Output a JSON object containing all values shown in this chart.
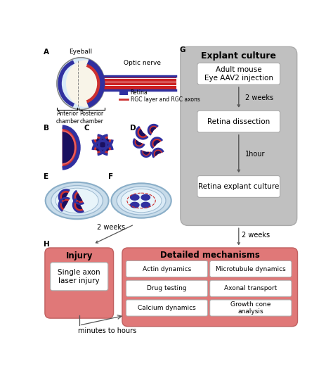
{
  "bg_color": "#ffffff",
  "gray_box_color": "#c0c0c0",
  "red_box_color": "#e07878",
  "white_box_color": "#ffffff",
  "retina_blue": "#3030a0",
  "retina_red": "#cc3030",
  "retina_dark": "#1a1060",
  "nerve_red": "#cc2020",
  "explant_title": "Explant culture",
  "flow_boxes": [
    "Adult mouse\nEye AAV2 injection",
    "Retina dissection",
    "Retina explant culture"
  ],
  "flow_labels": [
    "2 weeks",
    "1hour"
  ],
  "injury_title": "Injury",
  "injury_box": "Single axon\nlaser injury",
  "mechanisms_title": "Detailed mechanisms",
  "mechanisms_boxes": [
    [
      "Actin dynamics",
      "Microtubule dynamics"
    ],
    [
      "Drug testing",
      "Axonal transport"
    ],
    [
      "Calcium dynamics",
      "Growth cone\nanalysis"
    ]
  ],
  "label_A": "A",
  "label_B": "B",
  "label_C": "C",
  "label_D": "D",
  "label_E": "E",
  "label_F": "F",
  "label_G": "G",
  "label_H": "H",
  "eyeball_label": "Eyeball",
  "optic_nerve_label": "Optic nerve",
  "anterior_label": "Anterior\nchamber",
  "posterior_label": "Posterior\nchamber",
  "legend_retina": "Retina",
  "legend_rgc": "RGC layer and RGC axons",
  "arrow_2weeks_left": "2 weeks",
  "arrow_2weeks_right": "2 weeks",
  "arrow_minutes": "minutes to hours"
}
